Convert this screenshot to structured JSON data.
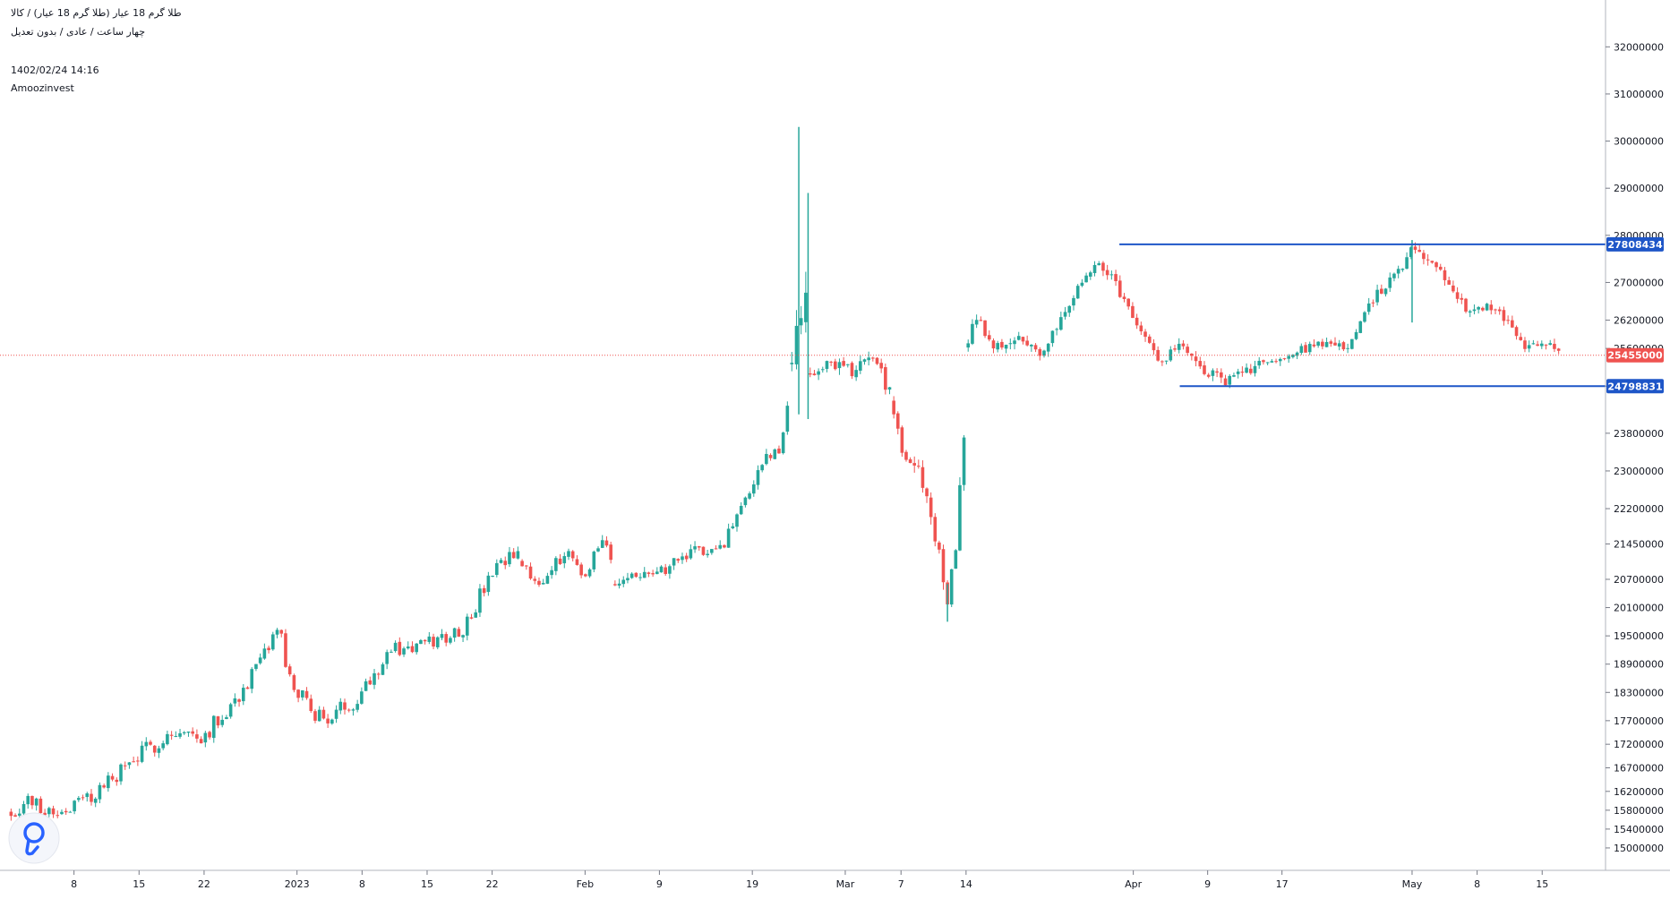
{
  "header": {
    "symbol_line": "طلا گرم 18 عیار (طلا گرم 18 عیار) / کالا",
    "interval_line": "چهار ساعت / عادی / بدون تعدیل",
    "datetime": "1402/02/24 14:16",
    "author": "Amoozinvest"
  },
  "logo": {
    "icon": "amoozinvest-logo-icon",
    "color": "#2962ff"
  },
  "colors": {
    "up": "#26a69a",
    "down": "#ef5350",
    "level": "#1e56c8",
    "price": "#ef5350",
    "axis_text": "#131722",
    "grid": "#d1d4dc"
  },
  "chart_data": {
    "type": "candlestick",
    "ylim": [
      14600000,
      32500000
    ],
    "y_ticks": [
      15000000,
      15400000,
      15800000,
      16200000,
      16700000,
      17200000,
      17700000,
      18300000,
      18900000,
      19500000,
      20100000,
      20700000,
      21450000,
      22200000,
      23000000,
      23800000,
      24800000,
      25600000,
      26200000,
      27000000,
      28000000,
      29000000,
      30000000,
      31000000,
      32000000
    ],
    "y_tick_labels": [
      "15000000",
      "15400000",
      "15800000",
      "16200000",
      "16700000",
      "17200000",
      "17700000",
      "18300000",
      "18900000",
      "19500000",
      "20100000",
      "20700000",
      "21450000",
      "22200000",
      "23000000",
      "23800000",
      "24800000",
      "25600000",
      "26200000",
      "27000000",
      "28000000",
      "29000000",
      "30000000",
      "31000000",
      "32000000"
    ],
    "x_ticks": [
      "8",
      "15",
      "22",
      "2023",
      "8",
      "15",
      "22",
      "Feb",
      "9",
      "19",
      "Mar",
      "7",
      "14",
      "Apr",
      "9",
      "17",
      "May",
      "8",
      "15"
    ],
    "x_tick_days": [
      -24,
      -17,
      -10,
      0,
      7,
      14,
      21,
      31,
      39,
      49,
      59,
      65,
      72,
      90,
      98,
      106,
      120,
      127,
      134
    ],
    "x_range_days": [
      -31,
      136
    ],
    "current_price": {
      "value": 25455000,
      "label": "25455000"
    },
    "levels": [
      {
        "value": 27808434,
        "label": "27808434",
        "from_day": 88.5
      },
      {
        "value": 24798831,
        "label": "24798831",
        "from_day": 95
      }
    ],
    "segments": [
      {
        "from": -31,
        "to": 24,
        "start": 15750000,
        "end": 21800000,
        "bars_per_day": 2.2,
        "vol": 110000,
        "wiggle": 380000,
        "seed": 7,
        "pins": [
          [
            -29,
            16000000
          ],
          [
            -26,
            15750000
          ],
          [
            -22,
            16100000
          ],
          [
            -18,
            16800000
          ],
          [
            -14,
            17400000
          ],
          [
            -10,
            17400000
          ],
          [
            -6,
            18300000
          ],
          [
            -3,
            19200000
          ],
          [
            -2,
            19800000
          ],
          [
            -1,
            18600000
          ],
          [
            1,
            18050000
          ],
          [
            3,
            17700000
          ],
          [
            6,
            18100000
          ],
          [
            10,
            19200000
          ],
          [
            14,
            19300000
          ],
          [
            18,
            19700000
          ],
          [
            21,
            20800000
          ],
          [
            24,
            21300000
          ]
        ]
      },
      {
        "from": 24,
        "to": 34,
        "start": 21100000,
        "end": 21000000,
        "bars_per_day": 2.2,
        "vol": 110000,
        "wiggle": 250000,
        "seed": 11,
        "pins": [
          [
            26,
            20600000
          ],
          [
            29,
            21300000
          ],
          [
            31,
            20800000
          ],
          [
            33,
            21700000
          ]
        ]
      },
      {
        "from": 34,
        "to": 53,
        "start": 20600000,
        "end": 24100000,
        "bars_per_day": 2.2,
        "vol": 110000,
        "wiggle": 280000,
        "seed": 13,
        "pins": [
          [
            35,
            20800000
          ],
          [
            38,
            20700000
          ],
          [
            42,
            21200000
          ],
          [
            46,
            21500000
          ],
          [
            48,
            22200000
          ],
          [
            50,
            23200000
          ],
          [
            52,
            23500000
          ],
          [
            53,
            24500000
          ]
        ]
      },
      {
        "from": 53,
        "to": 55,
        "start": 25200000,
        "end": 27200000,
        "bars_per_day": 2.2,
        "vol": 500000,
        "wiggle": 600000,
        "seed": 17,
        "pins": []
      },
      {
        "from": 55,
        "to": 64,
        "start": 25100000,
        "end": 25000000,
        "bars_per_day": 2.2,
        "vol": 150000,
        "wiggle": 300000,
        "seed": 19,
        "pins": [
          [
            57,
            25300000
          ],
          [
            60,
            25100000
          ],
          [
            62,
            25400000
          ],
          [
            64,
            24600000
          ]
        ]
      },
      {
        "from": 64,
        "to": 72,
        "start": 24500000,
        "end": 24600000,
        "bars_per_day": 2.2,
        "vol": 170000,
        "wiggle": 300000,
        "seed": 23,
        "pins": [
          [
            65,
            23500000
          ],
          [
            67,
            23000000
          ],
          [
            68,
            22300000
          ],
          [
            69,
            21300000
          ],
          [
            70,
            20300000
          ],
          [
            71,
            21600000
          ],
          [
            72,
            24500000
          ]
        ]
      },
      {
        "from": 72,
        "to": 136,
        "start": 25600000,
        "end": 25455000,
        "bars_per_day": 2.2,
        "vol": 120000,
        "wiggle": 200000,
        "seed": 29,
        "pins": [
          [
            73,
            26300000
          ],
          [
            75,
            25600000
          ],
          [
            78,
            25800000
          ],
          [
            80,
            25400000
          ],
          [
            83,
            26500000
          ],
          [
            86,
            27500000
          ],
          [
            88,
            27000000
          ],
          [
            90,
            26200000
          ],
          [
            93,
            25300000
          ],
          [
            95,
            25800000
          ],
          [
            97,
            25200000
          ],
          [
            100,
            24900000
          ],
          [
            104,
            25300000
          ],
          [
            107,
            25500000
          ],
          [
            110,
            25700000
          ],
          [
            113,
            25600000
          ],
          [
            116,
            26700000
          ],
          [
            119,
            27300000
          ],
          [
            120,
            27800000
          ],
          [
            123,
            27200000
          ],
          [
            126,
            26400000
          ],
          [
            129,
            26500000
          ],
          [
            132,
            25600000
          ],
          [
            134,
            25800000
          ],
          [
            136,
            25455000
          ]
        ]
      }
    ],
    "spikes": [
      {
        "day": 54,
        "high": 30300000,
        "low": 24200000
      },
      {
        "day": 55,
        "high": 28900000,
        "low": 24100000
      },
      {
        "day": 70,
        "high": 20600000,
        "low": 19800000
      },
      {
        "day": 120,
        "high": 27900000,
        "low": 26150000
      }
    ]
  }
}
